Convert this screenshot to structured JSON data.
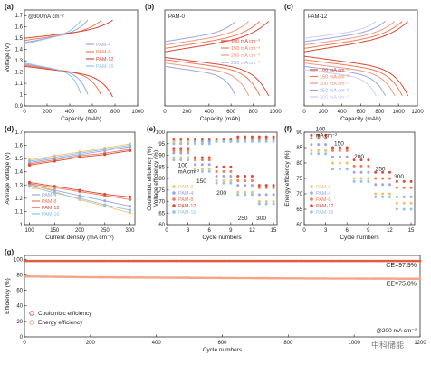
{
  "colors": {
    "PAM-0": "#f5c06a",
    "PAM-4": "#9aa6e6",
    "PAM-8": "#f07a56",
    "PAM-12": "#d94a3a",
    "PAM-16": "#8cc4ec",
    "r100": "#d94a3a",
    "r150": "#f07a56",
    "r200": "#f09a86",
    "r250": "#9aa6e6",
    "r300": "#c8cef5",
    "ce": "#e35a42",
    "ee": "#f6a488"
  },
  "chart_data": [
    {
      "id": "a",
      "type": "line",
      "panel_label": "(a)",
      "note": "@300mA cm⁻²",
      "xlabel": "Capacity (mAh)",
      "ylabel": "Voltage (V)",
      "xlim": [
        0,
        1000
      ],
      "ylim": [
        0.9,
        1.75
      ],
      "xticks": [
        0,
        200,
        400,
        600,
        800,
        1000
      ],
      "yticks": [
        0.9,
        1.0,
        1.1,
        1.2,
        1.3,
        1.4,
        1.5,
        1.6,
        1.7
      ],
      "legend": [
        "PAM-4",
        "PAM-8",
        "PAM-12",
        "PAM-16"
      ],
      "series": [
        {
          "name": "PAM-4",
          "capacity": 560,
          "c_start": 1.46,
          "c_end": 1.66,
          "d_start": 1.27,
          "d_end": 1.0
        },
        {
          "name": "PAM-8",
          "capacity": 680,
          "c_start": 1.48,
          "c_end": 1.66,
          "d_start": 1.26,
          "d_end": 0.99
        },
        {
          "name": "PAM-12",
          "capacity": 780,
          "c_start": 1.5,
          "c_end": 1.66,
          "d_start": 1.25,
          "d_end": 0.98
        },
        {
          "name": "PAM-16",
          "capacity": 500,
          "c_start": 1.45,
          "c_end": 1.66,
          "d_start": 1.28,
          "d_end": 1.0
        }
      ]
    },
    {
      "id": "b",
      "type": "line",
      "panel_label": "(b)",
      "note": "PAM-0",
      "xlabel": "Capacity (mAh)",
      "ylabel": "",
      "xlim": [
        0,
        1000
      ],
      "ylim": [
        0.9,
        1.75
      ],
      "xticks": [
        0,
        200,
        400,
        600,
        800,
        1000
      ],
      "yticks": [],
      "legend": [
        "100 mA cm⁻²",
        "150 mA cm⁻²",
        "200 mA cm⁻²",
        "250 mA cm⁻²"
      ],
      "series": [
        {
          "name": "100 mA cm⁻²",
          "colorKey": "r100",
          "capacity": 940,
          "c_start": 1.38,
          "c_end": 1.65,
          "d_start": 1.33,
          "d_end": 0.99
        },
        {
          "name": "150 mA cm⁻²",
          "colorKey": "r150",
          "capacity": 860,
          "c_start": 1.41,
          "c_end": 1.65,
          "d_start": 1.31,
          "d_end": 0.99
        },
        {
          "name": "200 mA cm⁻²",
          "colorKey": "r200",
          "capacity": 760,
          "c_start": 1.44,
          "c_end": 1.65,
          "d_start": 1.28,
          "d_end": 0.99
        },
        {
          "name": "250 mA cm⁻²",
          "colorKey": "r250",
          "capacity": 640,
          "c_start": 1.47,
          "c_end": 1.65,
          "d_start": 1.25,
          "d_end": 0.99
        }
      ]
    },
    {
      "id": "c",
      "type": "line",
      "panel_label": "(c)",
      "note": "PAM-12",
      "xlabel": "Capacity (mAh)",
      "ylabel": "",
      "xlim": [
        0,
        1200
      ],
      "ylim": [
        0.9,
        1.75
      ],
      "xticks": [
        0,
        200,
        400,
        600,
        800,
        1000,
        1200
      ],
      "yticks": [],
      "legend": [
        "100 mA cm⁻²",
        "150 mA cm⁻²",
        "200 mA cm⁻²",
        "250 mA cm⁻²",
        "300 mA cm⁻²"
      ],
      "series": [
        {
          "name": "100 mA cm⁻²",
          "colorKey": "r100",
          "capacity": 1100,
          "c_start": 1.38,
          "c_end": 1.65,
          "d_start": 1.34,
          "d_end": 0.99
        },
        {
          "name": "150 mA cm⁻²",
          "colorKey": "r150",
          "capacity": 1040,
          "c_start": 1.41,
          "c_end": 1.65,
          "d_start": 1.31,
          "d_end": 0.99
        },
        {
          "name": "200 mA cm⁻²",
          "colorKey": "r200",
          "capacity": 960,
          "c_start": 1.44,
          "c_end": 1.65,
          "d_start": 1.28,
          "d_end": 0.99
        },
        {
          "name": "250 mA cm⁻²",
          "colorKey": "r250",
          "capacity": 860,
          "c_start": 1.47,
          "c_end": 1.65,
          "d_start": 1.25,
          "d_end": 0.99
        },
        {
          "name": "300 mA cm⁻²",
          "colorKey": "r300",
          "capacity": 760,
          "c_start": 1.5,
          "c_end": 1.65,
          "d_start": 1.22,
          "d_end": 0.99
        }
      ]
    },
    {
      "id": "d",
      "type": "line",
      "panel_label": "(d)",
      "xlabel": "Current density (mA cm⁻²)",
      "ylabel": "Average voltage (V)",
      "xlim": [
        90,
        310
      ],
      "ylim": [
        1.0,
        1.7
      ],
      "xticks": [
        100,
        150,
        200,
        250,
        300
      ],
      "yticks": [
        1.0,
        1.1,
        1.2,
        1.3,
        1.4,
        1.5,
        1.6,
        1.7
      ],
      "x": [
        100,
        150,
        200,
        250,
        300
      ],
      "legend": [
        "PAM-0",
        "PAM-4",
        "PAM-8",
        "PAM-12",
        "PAM-16"
      ],
      "series": [
        {
          "name": "PAM-0",
          "charge": [
            1.49,
            1.52,
            1.55,
            1.58,
            1.61
          ],
          "discharge": [
            1.31,
            1.25,
            1.19,
            1.14,
            1.09
          ]
        },
        {
          "name": "PAM-4",
          "charge": [
            1.47,
            1.5,
            1.53,
            1.56,
            1.59
          ],
          "discharge": [
            1.3,
            1.26,
            1.22,
            1.18,
            1.14
          ]
        },
        {
          "name": "PAM-8",
          "charge": [
            1.46,
            1.49,
            1.52,
            1.54,
            1.57
          ],
          "discharge": [
            1.31,
            1.28,
            1.25,
            1.22,
            1.19
          ]
        },
        {
          "name": "PAM-12",
          "charge": [
            1.45,
            1.48,
            1.51,
            1.53,
            1.56
          ],
          "discharge": [
            1.32,
            1.29,
            1.26,
            1.23,
            1.21
          ]
        },
        {
          "name": "PAM-16",
          "charge": [
            1.48,
            1.51,
            1.54,
            1.57,
            1.6
          ],
          "discharge": [
            1.29,
            1.24,
            1.2,
            1.15,
            1.11
          ]
        }
      ]
    },
    {
      "id": "e",
      "type": "scatter",
      "panel_label": "(e)",
      "xlabel": "Cycle numbers",
      "ylabel": "Coulombic efficiency (%)",
      "ylabel2": "Voltage efficiency (%)",
      "xlim": [
        0,
        15.5
      ],
      "ylim": [
        60,
        100
      ],
      "xticks": [
        0,
        3,
        6,
        9,
        12,
        15
      ],
      "yticks": [
        60,
        65,
        70,
        75,
        80,
        85,
        90,
        95,
        100
      ],
      "x": [
        1,
        2,
        3,
        4,
        5,
        6,
        7,
        8,
        9,
        10,
        11,
        12,
        13,
        14,
        15
      ],
      "rate_labels": [
        "100",
        "mA cm⁻²",
        "150",
        "200",
        "250",
        "300"
      ],
      "legend": [
        "PAM-0",
        "PAM-4",
        "PAM-8",
        "PAM-12",
        "PAM-16"
      ],
      "series": [
        {
          "name": "PAM-0",
          "ce": [
            96,
            96,
            96,
            96,
            96,
            96,
            96,
            96,
            96,
            96,
            96,
            97,
            97,
            97,
            97
          ],
          "ve": [
            89,
            89,
            89,
            84,
            84,
            84,
            79,
            79,
            79,
            74,
            74,
            74,
            70,
            70,
            70
          ]
        },
        {
          "name": "PAM-4",
          "ce": [
            95,
            95,
            95,
            96,
            96,
            96,
            96,
            96,
            96,
            96,
            96,
            96,
            97,
            97,
            97
          ],
          "ve": [
            91,
            91,
            91,
            86,
            86,
            86,
            81,
            81,
            81,
            77,
            77,
            77,
            73,
            73,
            73
          ]
        },
        {
          "name": "PAM-8",
          "ce": [
            97,
            97,
            97,
            97,
            97,
            97,
            97,
            97,
            97,
            97,
            97,
            97,
            97,
            97,
            97
          ],
          "ve": [
            92,
            92,
            92,
            88,
            88,
            88,
            83,
            83,
            83,
            79,
            79,
            79,
            76,
            76,
            76
          ]
        },
        {
          "name": "PAM-12",
          "ce": [
            97,
            97,
            97,
            97,
            97,
            97,
            97,
            97,
            97,
            98,
            98,
            98,
            98,
            98,
            98
          ],
          "ve": [
            93,
            93,
            93,
            89,
            89,
            89,
            85,
            85,
            85,
            81,
            81,
            81,
            77,
            77,
            77
          ]
        },
        {
          "name": "PAM-16",
          "ce": [
            95,
            95,
            95,
            95,
            95,
            95,
            96,
            96,
            96,
            96,
            96,
            96,
            96,
            96,
            96
          ],
          "ve": [
            88,
            88,
            88,
            83,
            83,
            83,
            78,
            78,
            78,
            73,
            73,
            73,
            69,
            69,
            69
          ]
        }
      ]
    },
    {
      "id": "f",
      "type": "scatter",
      "panel_label": "(f)",
      "xlabel": "Cycle numbers",
      "ylabel": "Energy efficiency (%)",
      "xlim": [
        0,
        15.5
      ],
      "ylim": [
        60,
        90
      ],
      "xticks": [
        0,
        3,
        6,
        9,
        12,
        15
      ],
      "yticks": [
        60,
        65,
        70,
        75,
        80,
        85,
        90
      ],
      "x": [
        1,
        2,
        3,
        4,
        5,
        6,
        7,
        8,
        9,
        10,
        11,
        12,
        13,
        14,
        15
      ],
      "rate_labels": [
        "100",
        "mA cm⁻²",
        "150",
        "200",
        "250",
        "300"
      ],
      "legend": [
        "PAM-0",
        "PAM-4",
        "PAM-8",
        "PAM-12",
        "PAM-16"
      ],
      "series": [
        {
          "name": "PAM-0",
          "values": [
            84,
            84,
            84,
            80,
            80,
            80,
            75,
            75,
            75,
            70,
            70,
            70,
            67,
            67,
            67
          ]
        },
        {
          "name": "PAM-4",
          "values": [
            86,
            86,
            86,
            82,
            82,
            82,
            77,
            77,
            77,
            73,
            73,
            73,
            69,
            69,
            69
          ]
        },
        {
          "name": "PAM-8",
          "values": [
            88,
            88,
            88,
            84,
            84,
            84,
            79,
            79,
            79,
            75,
            75,
            75,
            72,
            72,
            72
          ]
        },
        {
          "name": "PAM-12",
          "values": [
            89,
            89,
            89,
            85,
            85,
            85,
            81,
            81,
            81,
            77,
            77,
            77,
            74,
            74,
            74
          ]
        },
        {
          "name": "PAM-16",
          "values": [
            83,
            83,
            83,
            78,
            78,
            78,
            74,
            74,
            74,
            69,
            69,
            69,
            65,
            65,
            65
          ]
        }
      ]
    },
    {
      "id": "g",
      "type": "scatter",
      "panel_label": "(g)",
      "xlabel": "Cycle numbers",
      "ylabel": "Efficiency (%)",
      "xlim": [
        0,
        1200
      ],
      "ylim": [
        0,
        105
      ],
      "xticks": [
        0,
        200,
        400,
        600,
        800,
        1000,
        1200
      ],
      "yticks": [
        0,
        20,
        40,
        60,
        80,
        100
      ],
      "annotations": {
        "ce": "CE=97.9%",
        "ee": "EE=75.0%",
        "condition": "@200 mA cm⁻²"
      },
      "legend": [
        "Coulombic efficiency",
        "Energy efficiency"
      ],
      "series": [
        {
          "name": "Coulombic efficiency",
          "x": [
            0,
            200,
            400,
            600,
            800,
            1000,
            1200
          ],
          "values": [
            97.9,
            97.9,
            97.9,
            97.9,
            97.9,
            97.9,
            97.9
          ]
        },
        {
          "name": "Energy efficiency",
          "x": [
            0,
            200,
            400,
            600,
            800,
            1000,
            1200
          ],
          "values": [
            78,
            77,
            76.5,
            76,
            75.5,
            75.2,
            75
          ]
        }
      ]
    }
  ],
  "watermark": "中科储能"
}
